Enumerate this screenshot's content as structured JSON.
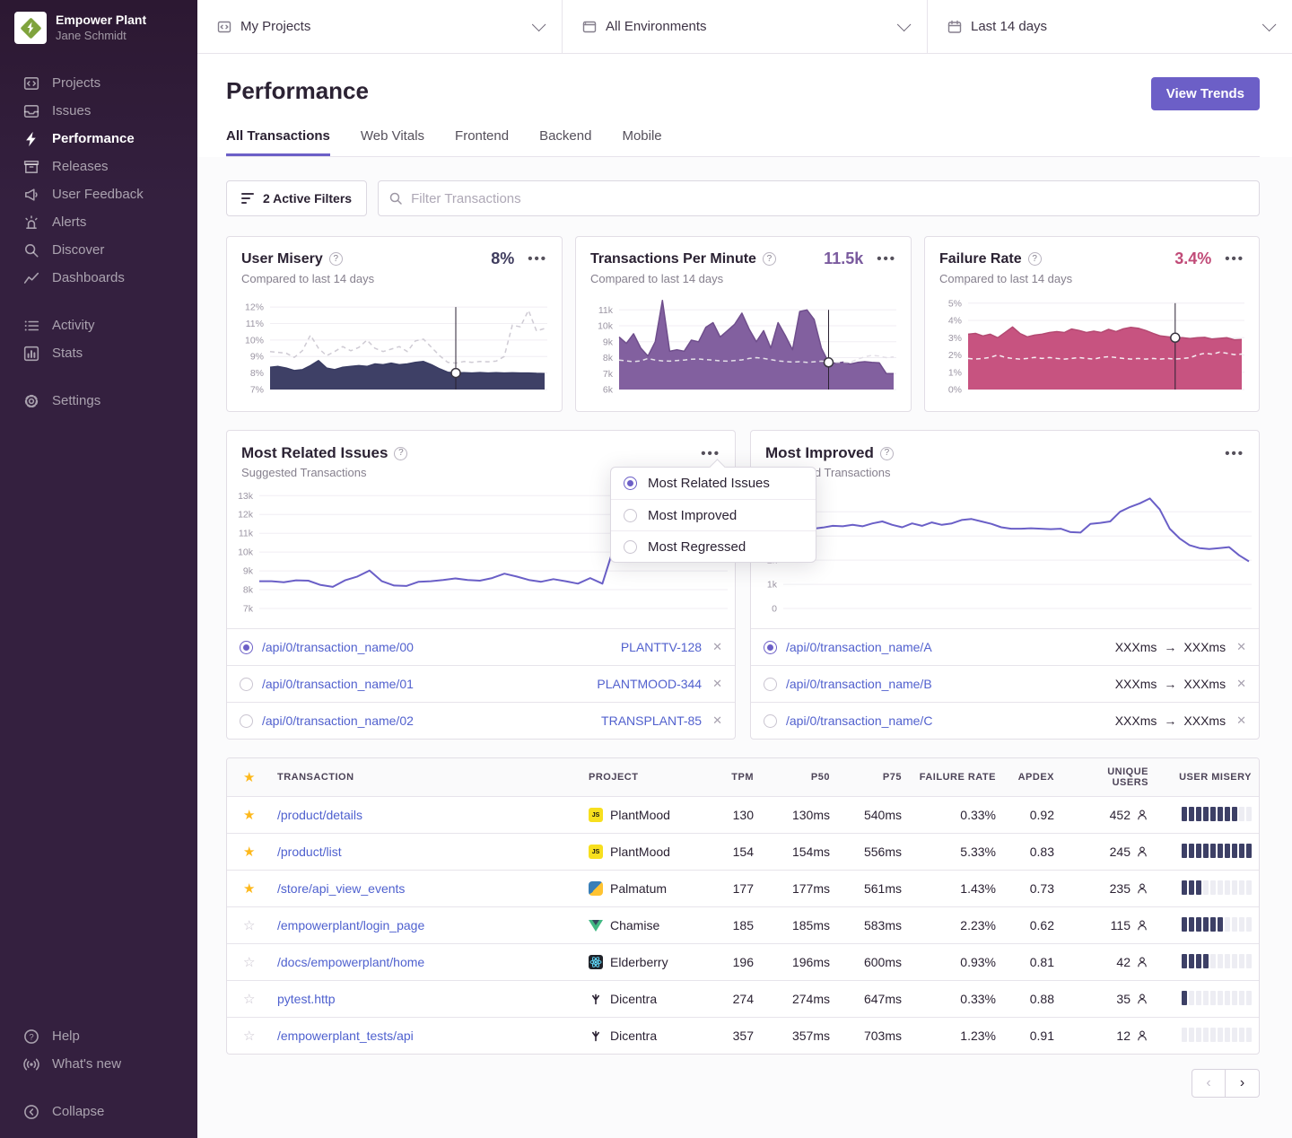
{
  "org": {
    "name": "Empower Plant",
    "user": "Jane Schmidt"
  },
  "sidebar": {
    "main": [
      {
        "label": "Projects",
        "icon": "projects"
      },
      {
        "label": "Issues",
        "icon": "issues"
      },
      {
        "label": "Performance",
        "icon": "performance",
        "active": true
      },
      {
        "label": "Releases",
        "icon": "releases"
      },
      {
        "label": "User Feedback",
        "icon": "user-feedback"
      },
      {
        "label": "Alerts",
        "icon": "alerts"
      },
      {
        "label": "Discover",
        "icon": "discover"
      },
      {
        "label": "Dashboards",
        "icon": "dashboards"
      }
    ],
    "secondary": [
      {
        "label": "Activity",
        "icon": "activity"
      },
      {
        "label": "Stats",
        "icon": "stats"
      }
    ],
    "tertiary": [
      {
        "label": "Settings",
        "icon": "settings"
      }
    ],
    "footer": [
      {
        "label": "Help",
        "icon": "help"
      },
      {
        "label": "What's new",
        "icon": "whats-new"
      }
    ],
    "collapse": {
      "label": "Collapse",
      "icon": "collapse"
    }
  },
  "topbar": {
    "project_filter": "My Projects",
    "environment_filter": "All Environments",
    "date_filter": "Last 14 days"
  },
  "header": {
    "title": "Performance",
    "view_trends": "View Trends"
  },
  "tabs": [
    {
      "label": "All Transactions",
      "active": true
    },
    {
      "label": "Web Vitals"
    },
    {
      "label": "Frontend"
    },
    {
      "label": "Backend"
    },
    {
      "label": "Mobile"
    }
  ],
  "filters": {
    "active_filters": "2 Active Filters",
    "search_placeholder": "Filter Transactions"
  },
  "metric_cards": [
    {
      "title": "User Misery",
      "value": "8%",
      "value_color": "#3F3C5E",
      "subtitle": "Compared to last 14 days",
      "chart": "misery"
    },
    {
      "title": "Transactions Per Minute",
      "value": "11.5k",
      "value_color": "#7A5A9E",
      "subtitle": "Compared to last 14 days",
      "chart": "tpm"
    },
    {
      "title": "Failure Rate",
      "value": "3.4%",
      "value_color": "#C14B78",
      "subtitle": "Compared to last 14 days",
      "chart": "failure"
    }
  ],
  "widget_cards": [
    {
      "title": "Most Related Issues",
      "subtitle": "Suggested Transactions",
      "chart": "related",
      "rows": [
        {
          "selected": true,
          "transaction": "/api/0/transaction_name/00",
          "issue": "PLANTTV-128"
        },
        {
          "selected": false,
          "transaction": "/api/0/transaction_name/01",
          "issue": "PLANTMOOD-344"
        },
        {
          "selected": false,
          "transaction": "/api/0/transaction_name/02",
          "issue": "TRANSPLANT-85"
        }
      ]
    },
    {
      "title": "Most Improved",
      "subtitle": "Suggested Transactions",
      "chart": "improved",
      "rows": [
        {
          "selected": true,
          "transaction": "/api/0/transaction_name/A",
          "from": "XXXms",
          "to": "XXXms"
        },
        {
          "selected": false,
          "transaction": "/api/0/transaction_name/B",
          "from": "XXXms",
          "to": "XXXms"
        },
        {
          "selected": false,
          "transaction": "/api/0/transaction_name/C",
          "from": "XXXms",
          "to": "XXXms"
        }
      ]
    }
  ],
  "dropdown_menu": {
    "items": [
      {
        "label": "Most Related Issues",
        "selected": true
      },
      {
        "label": "Most Improved",
        "selected": false
      },
      {
        "label": "Most Regressed",
        "selected": false
      }
    ]
  },
  "table": {
    "columns": [
      "TRANSACTION",
      "PROJECT",
      "TPM",
      "P50",
      "P75",
      "FAILURE RATE",
      "APDEX",
      "UNIQUE USERS",
      "USER MISERY"
    ],
    "rows": [
      {
        "starred": true,
        "transaction": "/product/details",
        "project": "PlantMood",
        "project_icon": "js",
        "tpm": "130",
        "p50": "130ms",
        "p75": "540ms",
        "failure_rate": "0.33%",
        "apdex": "0.92",
        "unique_users": "452",
        "misery": 8
      },
      {
        "starred": true,
        "transaction": "/product/list",
        "project": "PlantMood",
        "project_icon": "js",
        "tpm": "154",
        "p50": "154ms",
        "p75": "556ms",
        "failure_rate": "5.33%",
        "apdex": "0.83",
        "unique_users": "245",
        "misery": 10
      },
      {
        "starred": true,
        "transaction": "/store/api_view_events",
        "project": "Palmatum",
        "project_icon": "python",
        "tpm": "177",
        "p50": "177ms",
        "p75": "561ms",
        "failure_rate": "1.43%",
        "apdex": "0.73",
        "unique_users": "235",
        "misery": 3
      },
      {
        "starred": false,
        "transaction": "/empowerplant/login_page",
        "project": "Chamise",
        "project_icon": "vue",
        "tpm": "185",
        "p50": "185ms",
        "p75": "583ms",
        "failure_rate": "2.23%",
        "apdex": "0.62",
        "unique_users": "115",
        "misery": 6
      },
      {
        "starred": false,
        "transaction": "/docs/empowerplant/home",
        "project": "Elderberry",
        "project_icon": "react",
        "tpm": "196",
        "p50": "196ms",
        "p75": "600ms",
        "failure_rate": "0.93%",
        "apdex": "0.81",
        "unique_users": "42",
        "misery": 4
      },
      {
        "starred": false,
        "transaction": "pytest.http",
        "project": "Dicentra",
        "project_icon": "bird",
        "tpm": "274",
        "p50": "274ms",
        "p75": "647ms",
        "failure_rate": "0.33%",
        "apdex": "0.88",
        "unique_users": "35",
        "misery": 1
      },
      {
        "starred": false,
        "transaction": "/empowerplant_tests/api",
        "project": "Dicentra",
        "project_icon": "bird",
        "tpm": "357",
        "p50": "357ms",
        "p75": "703ms",
        "failure_rate": "1.23%",
        "apdex": "0.91",
        "unique_users": "12",
        "misery": 0
      }
    ]
  },
  "chart_data": {
    "misery": {
      "type": "area",
      "title": "User Misery",
      "ylim": [
        7,
        12.55
      ],
      "grid": true,
      "legend": "none",
      "yticks": [
        [
          12,
          "12%"
        ],
        [
          11,
          "11%"
        ],
        [
          10,
          "10%"
        ],
        [
          9,
          "9%"
        ],
        [
          8,
          "8%"
        ],
        [
          7,
          "7%"
        ]
      ],
      "series": [
        {
          "name": "previous period",
          "type": "dashed",
          "color": "#CFCBD4",
          "values": [
            9.3,
            9.25,
            9.2,
            8.95,
            9.35,
            10.3,
            9.5,
            9.05,
            9.3,
            9.6,
            9.35,
            9.55,
            10.0,
            9.5,
            9.3,
            9.45,
            9.6,
            9.3,
            9.95,
            10.05,
            9.55,
            9.05,
            8.65,
            8.6,
            8.7,
            8.65,
            8.7,
            8.68,
            8.72,
            9.0,
            10.9,
            10.8,
            11.8,
            10.55,
            10.7
          ]
        },
        {
          "name": "current period",
          "type": "area",
          "color": "#393C63",
          "fill": "#3E4066",
          "values": [
            8.35,
            8.4,
            8.3,
            8.15,
            8.2,
            8.45,
            8.75,
            8.3,
            8.2,
            8.35,
            8.4,
            8.45,
            8.4,
            8.55,
            8.5,
            8.6,
            8.5,
            8.55,
            8.65,
            8.7,
            8.5,
            8.25,
            8.05,
            8.0,
            8.02,
            8.0,
            8.03,
            8.0,
            8.02,
            8.0,
            8.01,
            8.0,
            8.0,
            7.98,
            7.97
          ]
        }
      ],
      "marker": {
        "index": 23
      }
    },
    "tpm": {
      "type": "area",
      "title": "Transactions Per Minute",
      "ylim": [
        6,
        11.75
      ],
      "grid": true,
      "legend": "none",
      "yticks": [
        [
          11,
          "11k"
        ],
        [
          10,
          "10k"
        ],
        [
          9,
          "9k"
        ],
        [
          8,
          "8k"
        ],
        [
          7,
          "7k"
        ],
        [
          6,
          "6k"
        ]
      ],
      "series": [
        {
          "name": "current period",
          "type": "area",
          "color": "#6F4E8C",
          "fill": "#82609F",
          "values": [
            9.3,
            8.9,
            9.5,
            8.6,
            8.1,
            9.0,
            11.6,
            8.4,
            8.5,
            8.4,
            9.1,
            9.0,
            9.9,
            10.2,
            9.3,
            9.7,
            10.1,
            10.8,
            9.8,
            9.0,
            9.7,
            8.6,
            10.2,
            9.4,
            8.5,
            10.9,
            11.0,
            10.4,
            8.6,
            7.7,
            7.65,
            7.72,
            7.6,
            7.7,
            7.75,
            7.7,
            7.68,
            7.0,
            7.0
          ]
        },
        {
          "name": "previous period",
          "type": "dashed",
          "color": "#E4E0E8",
          "values": [
            7.85,
            7.8,
            7.75,
            7.8,
            7.95,
            7.85,
            7.8,
            7.78,
            7.82,
            7.85,
            7.9,
            7.92,
            7.88,
            7.85,
            7.8,
            7.78,
            7.82,
            7.86,
            7.95,
            8.0,
            7.95,
            7.88,
            7.8,
            7.76,
            7.72,
            7.75,
            7.7,
            7.74,
            7.78,
            7.74,
            7.7,
            7.72,
            7.7,
            7.9,
            8.05,
            8.15,
            8.1,
            8.0,
            8.05
          ]
        }
      ],
      "marker": {
        "index": 29
      }
    },
    "failure": {
      "type": "area",
      "title": "Failure Rate",
      "ylim": [
        0,
        5.3
      ],
      "grid": true,
      "legend": "none",
      "yticks": [
        [
          5,
          "5%"
        ],
        [
          4,
          "4%"
        ],
        [
          3,
          "3%"
        ],
        [
          2,
          "2%"
        ],
        [
          1,
          "1%"
        ],
        [
          0,
          "0%"
        ]
      ],
      "series": [
        {
          "name": "current period",
          "type": "area",
          "color": "#B44A72",
          "fill": "#C75380",
          "values": [
            3.2,
            3.25,
            3.1,
            3.2,
            3.0,
            3.3,
            3.62,
            3.25,
            3.05,
            3.15,
            3.2,
            3.3,
            3.35,
            3.3,
            3.5,
            3.42,
            3.3,
            3.38,
            3.3,
            3.48,
            3.35,
            3.52,
            3.6,
            3.55,
            3.42,
            3.25,
            3.1,
            3.05,
            3.0,
            3.0,
            2.95,
            3.0,
            3.02,
            2.92,
            2.96,
            3.0,
            2.88,
            2.9
          ]
        },
        {
          "name": "previous period",
          "type": "dashed",
          "color": "#F6EDF2",
          "values": [
            1.8,
            1.76,
            1.8,
            1.86,
            2.0,
            1.86,
            1.8,
            1.76,
            1.8,
            1.86,
            1.8,
            1.85,
            1.8,
            1.76,
            1.8,
            1.85,
            1.8,
            1.76,
            1.86,
            1.9,
            1.85,
            1.8,
            1.76,
            1.8,
            1.76,
            1.8,
            1.76,
            1.8,
            1.76,
            1.8,
            1.84,
            2.0,
            2.1,
            2.04,
            2.16,
            2.1,
            2.02,
            2.05
          ]
        }
      ],
      "marker": {
        "index": 28
      }
    },
    "related": {
      "type": "line",
      "title": "Most Related Issues",
      "ylim": [
        7,
        13.3
      ],
      "grid": true,
      "legend": "none",
      "yticks": [
        [
          13,
          "13k"
        ],
        [
          12,
          "12k"
        ],
        [
          11,
          "11k"
        ],
        [
          10,
          "10k"
        ],
        [
          9,
          "9k"
        ],
        [
          8,
          "8k"
        ],
        [
          7,
          "7k"
        ]
      ],
      "series": [
        {
          "name": "transactions",
          "type": "line",
          "color": "#6A5FC7",
          "values": [
            8.45,
            8.45,
            8.4,
            8.5,
            8.48,
            8.25,
            8.15,
            8.5,
            8.7,
            9.02,
            8.45,
            8.22,
            8.2,
            8.42,
            8.45,
            8.52,
            8.6,
            8.52,
            8.48,
            8.62,
            8.85,
            8.7,
            8.52,
            8.42,
            8.56,
            8.45,
            8.32,
            8.62,
            8.32,
            10.4,
            10.45,
            10.2,
            10.0,
            9.78,
            10.9,
            9.55,
            9.5,
            9.48,
            9.62
          ]
        }
      ]
    },
    "improved": {
      "type": "line",
      "title": "Most Improved",
      "ylim": [
        0,
        4.9
      ],
      "grid": true,
      "legend": "none",
      "yticks": [
        [
          4,
          "4k"
        ],
        [
          3,
          "3k"
        ],
        [
          2,
          "2k"
        ],
        [
          1,
          "1k"
        ],
        [
          0,
          "0"
        ]
      ],
      "series": [
        {
          "name": "transactions",
          "type": "line",
          "color": "#6A5FC7",
          "values": [
            3.2,
            3.45,
            3.7,
            3.3,
            3.35,
            3.42,
            3.4,
            3.46,
            3.4,
            3.52,
            3.6,
            3.46,
            3.36,
            3.52,
            3.42,
            3.56,
            3.46,
            3.52,
            3.66,
            3.7,
            3.6,
            3.5,
            3.36,
            3.3,
            3.3,
            3.32,
            3.3,
            3.28,
            3.3,
            3.16,
            3.14,
            3.5,
            3.54,
            3.6,
            4.0,
            4.2,
            4.35,
            4.55,
            4.1,
            3.3,
            2.9,
            2.62,
            2.5,
            2.46,
            2.5,
            2.54,
            2.2,
            1.95
          ]
        }
      ]
    }
  },
  "pagination": {
    "prev_disabled": true
  }
}
